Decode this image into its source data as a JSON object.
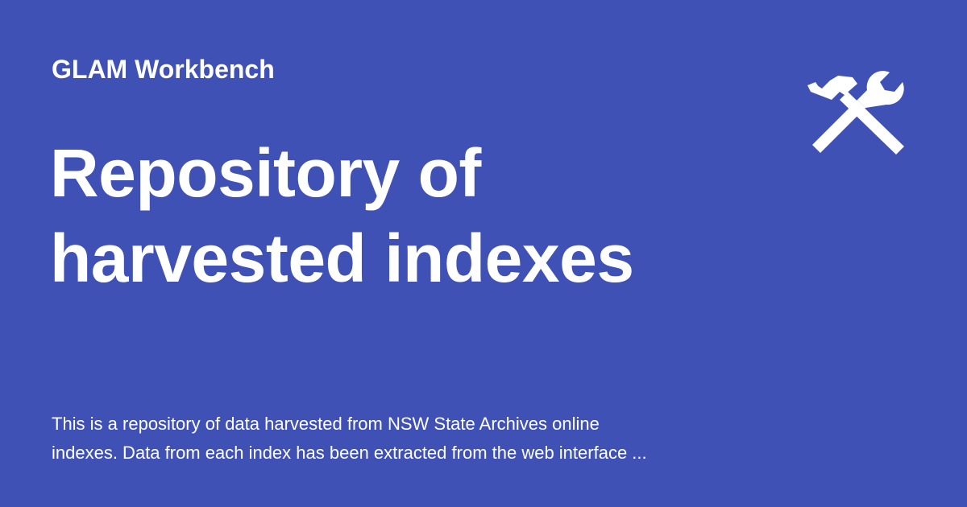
{
  "site": {
    "name": "GLAM Workbench",
    "logo_icon": "hammer-wrench-icon"
  },
  "page": {
    "title_lines": [
      "Repository of",
      "harvested indexes"
    ],
    "description_lines": [
      "This is a repository of data harvested from NSW State Archives online",
      "indexes. Data from each index has been extracted from the web interface ..."
    ]
  },
  "colors": {
    "background": "#3F51B5",
    "text": "#FFFFFF"
  }
}
